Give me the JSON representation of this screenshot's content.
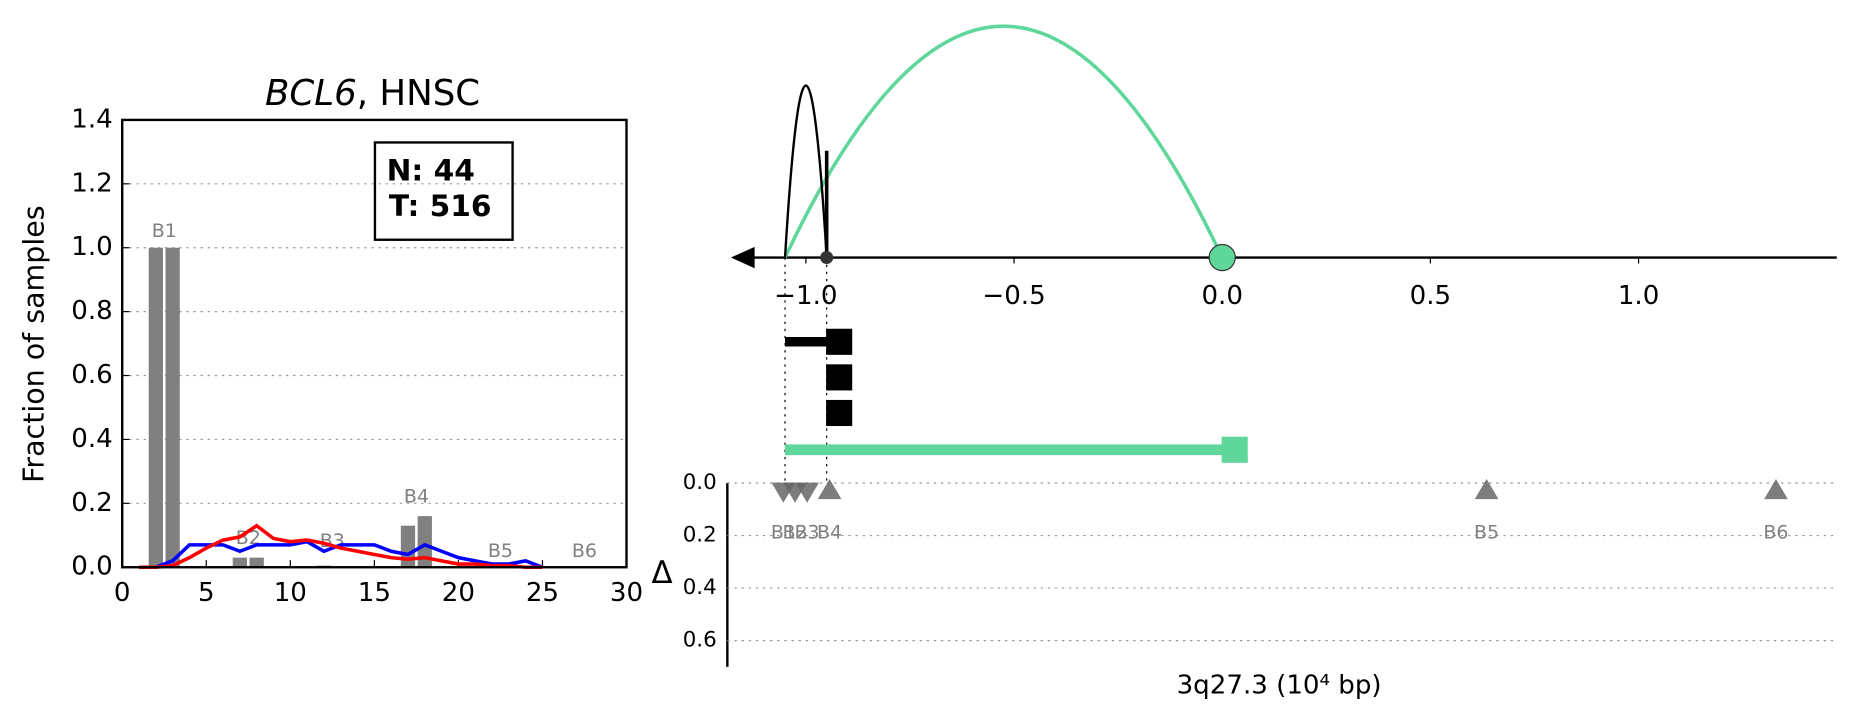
{
  "chart_data": [
    {
      "type": "bar",
      "title": [
        "BCL6",
        ", HNSC"
      ],
      "ylabel": "Fraction of samples",
      "annotation": [
        "N: 44",
        "T: 516"
      ],
      "x": [
        2,
        3,
        7,
        8,
        12,
        17,
        18
      ],
      "values": [
        1.0,
        1.0,
        0.03,
        0.03,
        0.005,
        0.13,
        0.16
      ],
      "color": "#808080",
      "bar_labels": [
        {
          "text": "B1",
          "x": 2.5,
          "y": 1.05
        },
        {
          "text": "B2",
          "x": 7.5,
          "y": 0.09
        },
        {
          "text": "B3",
          "x": 12.5,
          "y": 0.08
        },
        {
          "text": "B4",
          "x": 17.5,
          "y": 0.22
        },
        {
          "text": "B5",
          "x": 22.5,
          "y": 0.05
        },
        {
          "text": "B6",
          "x": 27.5,
          "y": 0.05
        }
      ],
      "series": [
        {
          "color": "#0000ff",
          "x": [
            2,
            3,
            4,
            5,
            6,
            7,
            8,
            9,
            10,
            11,
            12,
            13,
            14,
            15,
            16,
            17,
            18,
            19,
            20,
            21,
            22,
            23,
            24,
            25
          ],
          "values": [
            0,
            0.02,
            0.07,
            0.07,
            0.07,
            0.05,
            0.07,
            0.07,
            0.07,
            0.08,
            0.05,
            0.07,
            0.07,
            0.07,
            0.05,
            0.04,
            0.07,
            0.05,
            0.03,
            0.02,
            0.01,
            0.01,
            0.02,
            0
          ]
        },
        {
          "color": "#ff0000",
          "x": [
            1,
            2,
            3,
            4,
            5,
            6,
            7,
            8,
            9,
            10,
            11,
            12,
            13,
            14,
            15,
            16,
            17,
            18,
            19,
            20,
            21,
            22,
            23,
            24,
            25
          ],
          "values": [
            0,
            0,
            0.005,
            0.03,
            0.06,
            0.085,
            0.095,
            0.13,
            0.09,
            0.08,
            0.085,
            0.075,
            0.06,
            0.05,
            0.04,
            0.03,
            0.025,
            0.03,
            0.02,
            0.01,
            0.01,
            0.005,
            0.005,
            0,
            0
          ]
        }
      ],
      "xlim": [
        0,
        30
      ],
      "xticks": [
        0,
        5,
        10,
        15,
        20,
        25,
        30
      ],
      "ylim": [
        0,
        1.4
      ],
      "yticks": [
        {
          "value": 0,
          "label": "0.0"
        },
        0.2,
        0.4,
        0.6,
        0.8,
        {
          "value": 1,
          "label": "1.0"
        },
        1.2,
        1.4
      ],
      "grid": true
    },
    {
      "type": "breakpoints",
      "xlabel": "3q27.3 (10⁴ bp)",
      "ylabel": "Δ",
      "xlim": [
        -1.18,
        1.476
      ],
      "xticks": [
        {
          "value": -1,
          "label": "−1.0"
        },
        {
          "value": -0.5,
          "label": "−0.5"
        },
        {
          "value": 0,
          "label": "0.0"
        },
        {
          "value": 0.5,
          "label": "0.5"
        },
        {
          "value": 1,
          "label": "1.0"
        }
      ],
      "arcs": [
        {
          "from": -1.05,
          "to": 0.0,
          "color": "#5fd79a"
        },
        {
          "from": -1.05,
          "to": -0.95,
          "color": "#000000"
        }
      ],
      "nodes": [
        {
          "x": -0.95,
          "color": "#333333"
        },
        {
          "x": 0.0,
          "color": "#5fd79a"
        }
      ],
      "segments": [
        {
          "from": -1.05,
          "to": -0.92,
          "color": "#000000"
        },
        {
          "from": -1.05,
          "to": 0.03,
          "color": "#5fd79a"
        }
      ],
      "breakpoints": {
        "names": [
          "B1",
          "B2",
          "B3",
          "B4",
          "B5",
          "B6"
        ],
        "x": [
          -1.054,
          -1.026,
          -0.997,
          -0.943,
          0.635,
          1.33
        ],
        "values": [
          0.03,
          0.03,
          0.03,
          0.03,
          0.03,
          0.03
        ],
        "direction": [
          "down",
          "down",
          "down",
          "up",
          "up",
          "up"
        ],
        "color": "#666666"
      },
      "ylim": [
        0,
        0.7
      ],
      "yticks": [
        {
          "value": 0,
          "label": "0.0"
        },
        0.2,
        0.4,
        0.6
      ],
      "grid": true
    }
  ]
}
